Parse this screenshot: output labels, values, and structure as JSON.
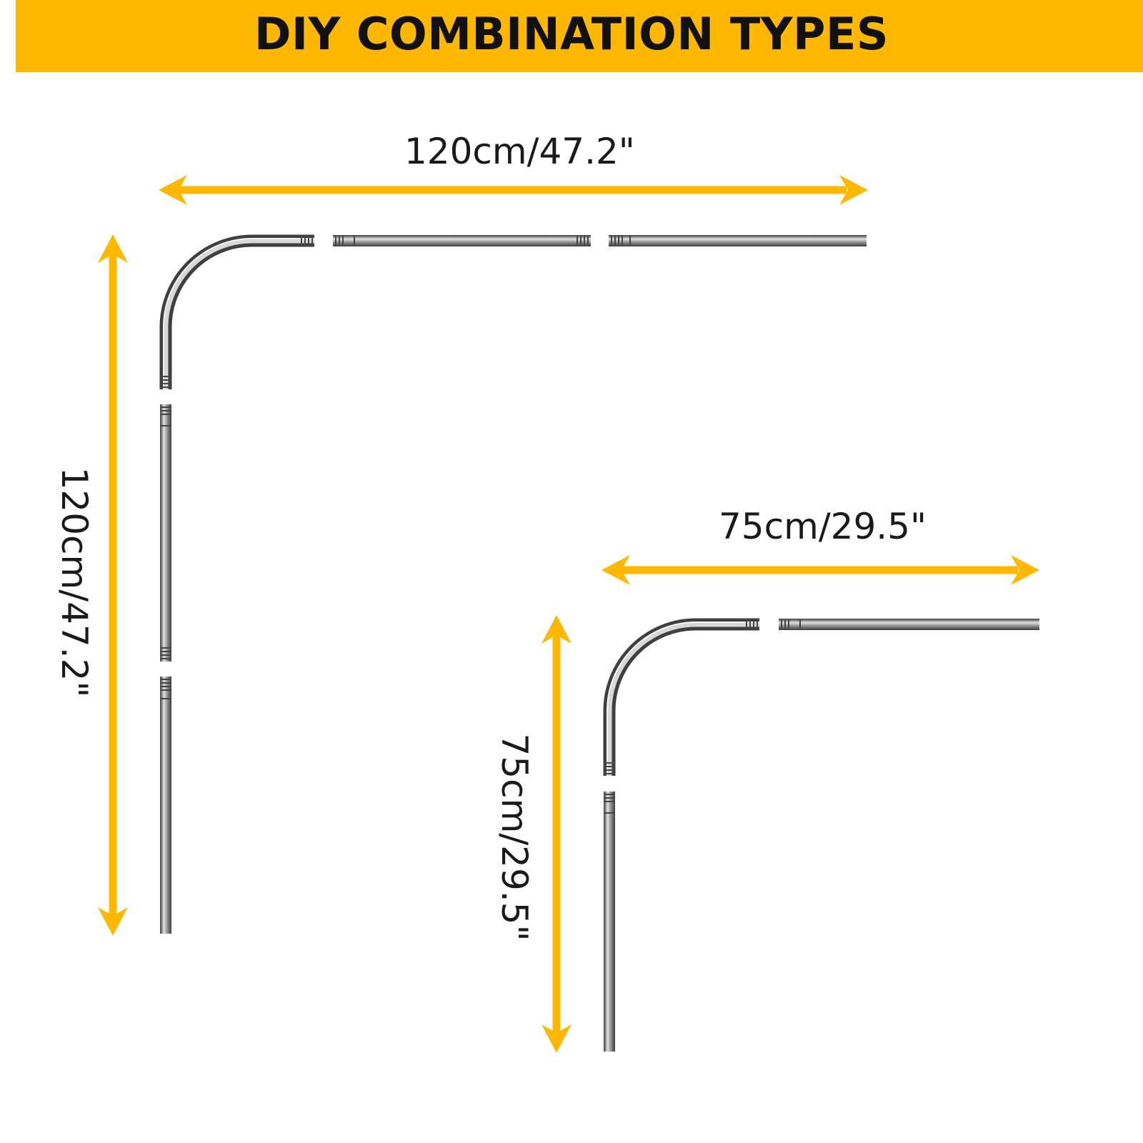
{
  "title": "DIY COMBINATION TYPES",
  "colors": {
    "banner": "#FFB800",
    "arrow": "#FFB800",
    "rod_dark": "#4a4a4a",
    "rod_light": "#d0d0d0",
    "text": "#111111"
  },
  "configurations": [
    {
      "name": "large",
      "width_label": "120cm/47.2\"",
      "height_label": "120cm/47.2\"",
      "pieces": [
        "corner",
        "straight",
        "straight",
        "straight",
        "straight"
      ]
    },
    {
      "name": "small",
      "width_label": "75cm/29.5\"",
      "height_label": "75cm/29.5\"",
      "pieces": [
        "corner",
        "straight",
        "straight"
      ]
    }
  ]
}
